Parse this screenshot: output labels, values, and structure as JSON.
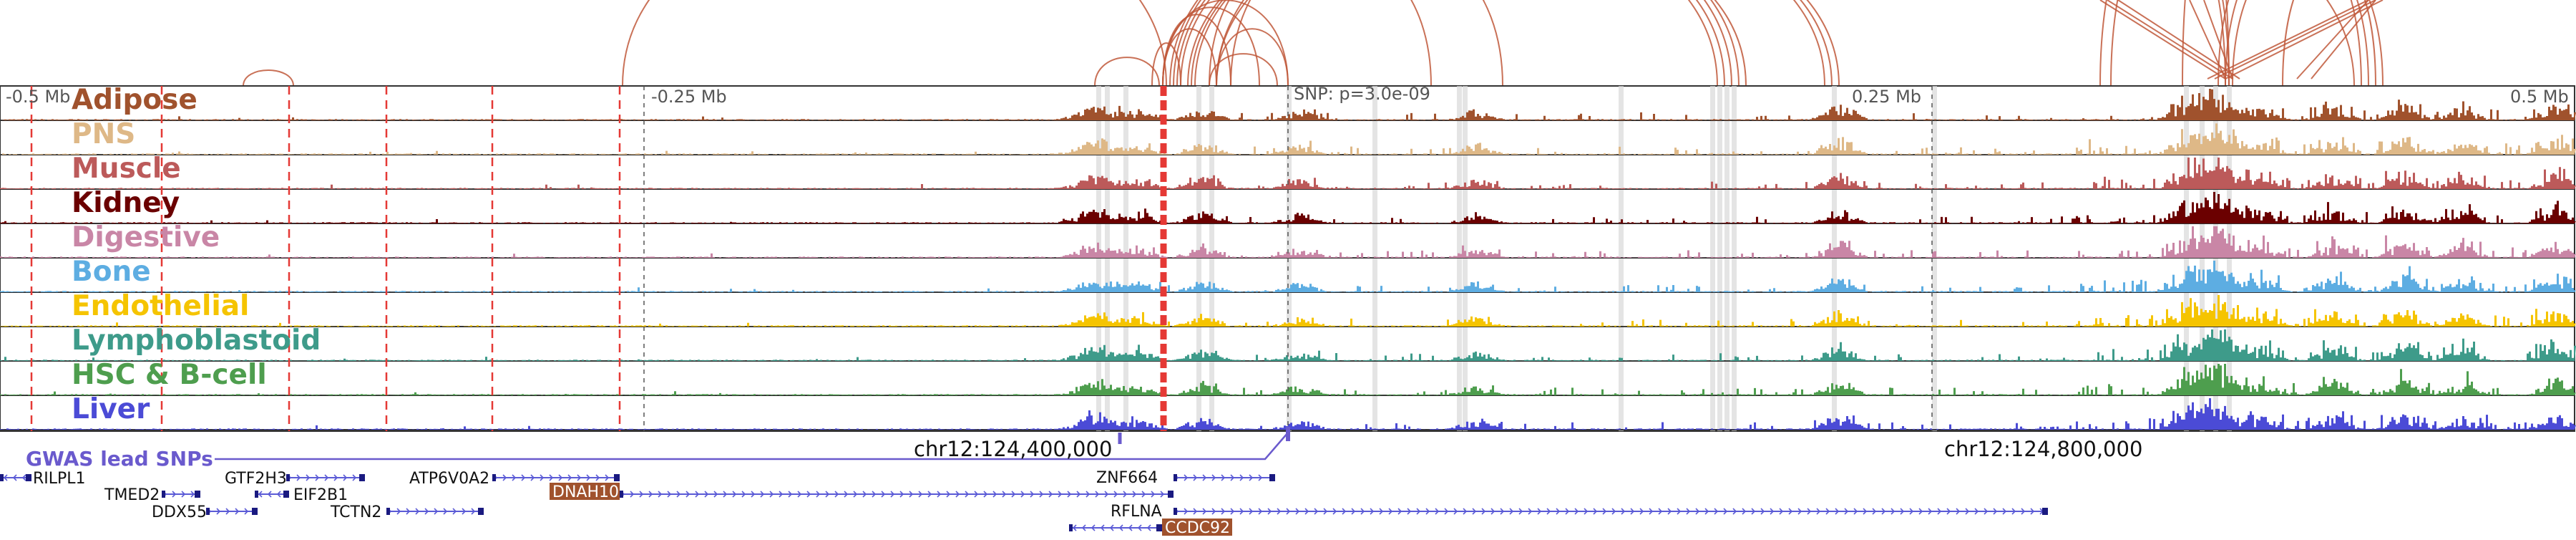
{
  "scale": {
    "left_label": "-0.5 Mb",
    "mid_left_label": "-0.25 Mb",
    "snp_label": "SNP: p=3.0e-09",
    "mid_right_label": "0.25 Mb",
    "right_label": "0.5 Mb"
  },
  "tracks": [
    {
      "name": "Adipose",
      "color": "#A0522D"
    },
    {
      "name": "PNS",
      "color": "#DEB887"
    },
    {
      "name": "Muscle",
      "color": "#BC5A5A"
    },
    {
      "name": "Kidney",
      "color": "#6B0000"
    },
    {
      "name": "Digestive",
      "color": "#C986A6"
    },
    {
      "name": "Bone",
      "color": "#5DADE2"
    },
    {
      "name": "Endothelial",
      "color": "#F5C400"
    },
    {
      "name": "Lymphoblastoid",
      "color": "#3E9B8A"
    },
    {
      "name": "HSC & B-cell",
      "color": "#4E9E4E"
    },
    {
      "name": "Liver",
      "color": "#4B4BD6"
    }
  ],
  "gwas_label": "GWAS lead SNPs",
  "coordinates": {
    "left": "chr12:124,400,000",
    "right": "chr12:124,800,000"
  },
  "genes": [
    {
      "name": "RILPL1",
      "highlighted": false
    },
    {
      "name": "TMED2",
      "highlighted": false
    },
    {
      "name": "DDX55",
      "highlighted": false
    },
    {
      "name": "GTF2H3",
      "highlighted": false
    },
    {
      "name": "EIF2B1",
      "highlighted": false
    },
    {
      "name": "TCTN2",
      "highlighted": false
    },
    {
      "name": "ATP6V0A2",
      "highlighted": false
    },
    {
      "name": "DNAH10",
      "highlighted": true
    },
    {
      "name": "ZNF664",
      "highlighted": false
    },
    {
      "name": "RFLNA",
      "highlighted": false
    },
    {
      "name": "CCDC92",
      "highlighted": true
    }
  ],
  "colors": {
    "arc": "#C0583A",
    "lead_snp_line": "#E53935",
    "hl_gene_fill": "#A0522D",
    "gene_line": "#5B5BD6",
    "gwas_color": "#6A5ACD"
  }
}
